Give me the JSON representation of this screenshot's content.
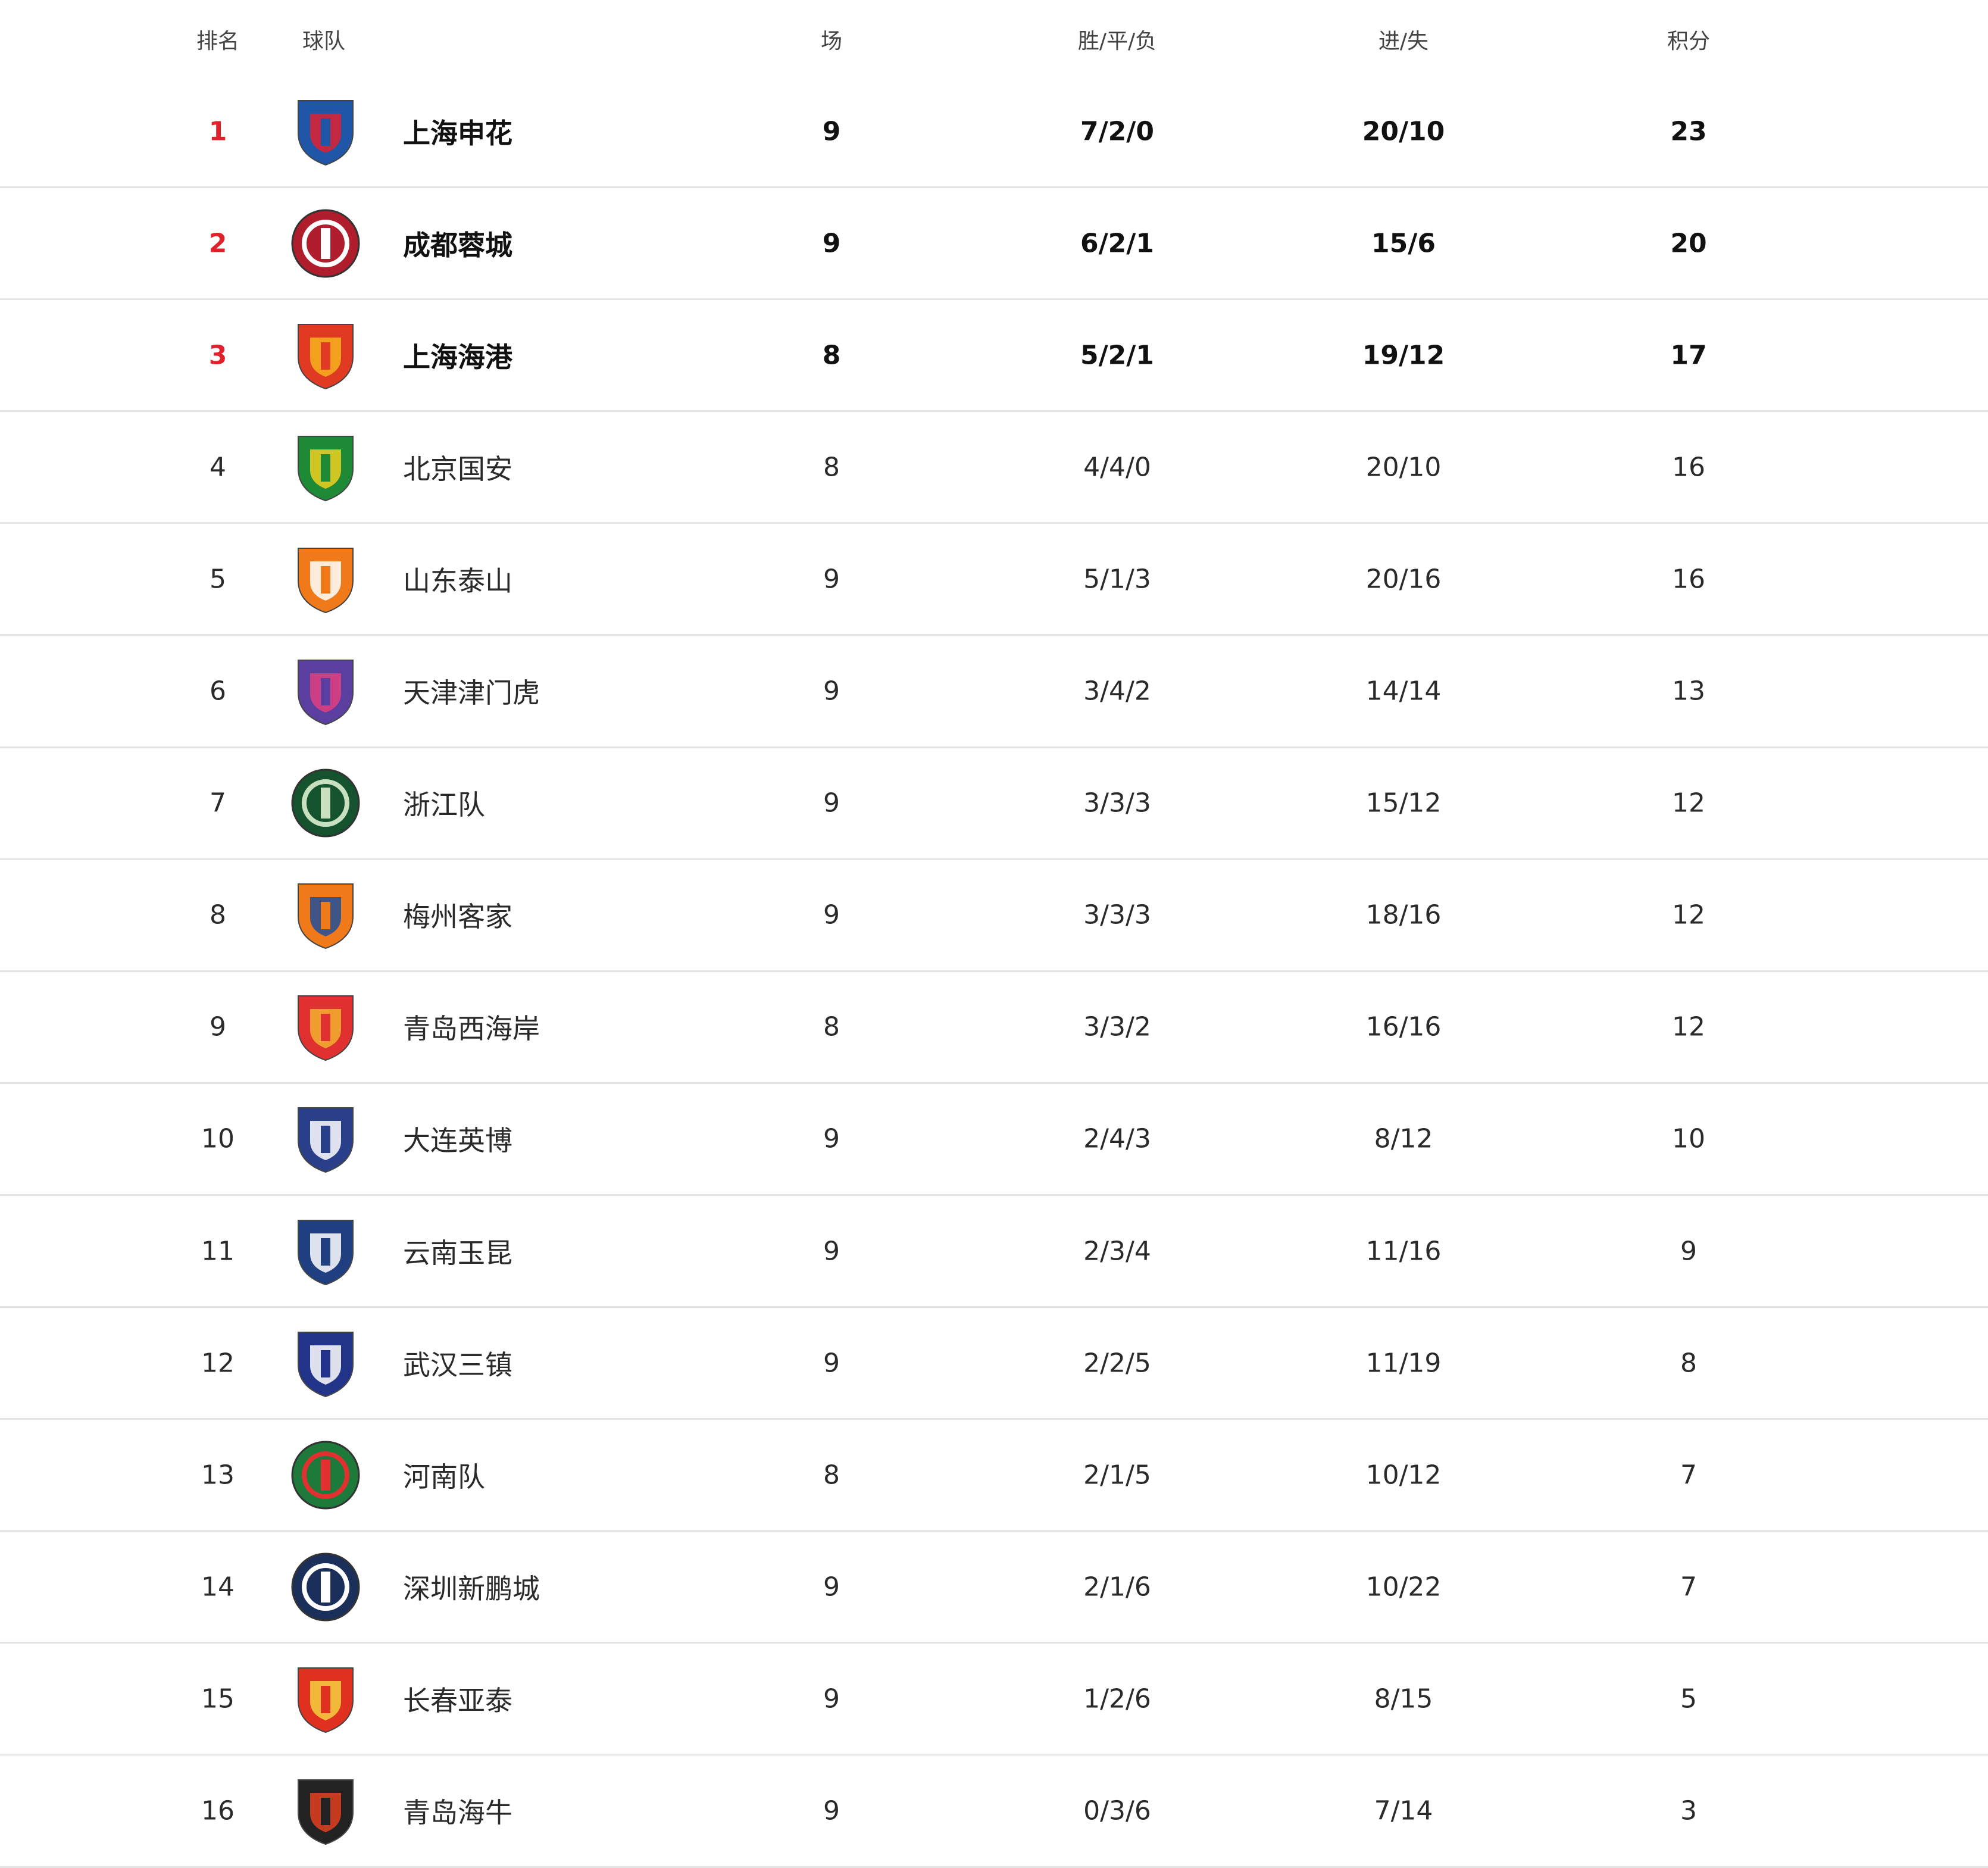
{
  "header": {
    "rank": "排名",
    "team": "球队",
    "played": "场",
    "wdl": "胜/平/负",
    "goals": "进/失",
    "points": "积分"
  },
  "colors": {
    "top_rank": "#e0202a",
    "divider": "#e4e4e4"
  },
  "rows": [
    {
      "rank": "1",
      "team": "上海申花",
      "played": "9",
      "wdl": "7/2/0",
      "goals": "20/10",
      "points": "23",
      "logo": "shenhua-crest-icon",
      "c1": "#1f56a8",
      "c2": "#e02030",
      "shape": "shield"
    },
    {
      "rank": "2",
      "team": "成都蓉城",
      "played": "9",
      "wdl": "6/2/1",
      "goals": "15/6",
      "points": "20",
      "logo": "chengdu-crest-icon",
      "c1": "#b01e2e",
      "c2": "#ffffff",
      "shape": "circle"
    },
    {
      "rank": "3",
      "team": "上海海港",
      "played": "8",
      "wdl": "5/2/1",
      "goals": "19/12",
      "points": "17",
      "logo": "haigang-crest-icon",
      "c1": "#e03a22",
      "c2": "#f4b31c",
      "shape": "shield"
    },
    {
      "rank": "4",
      "team": "北京国安",
      "played": "8",
      "wdl": "4/4/0",
      "goals": "20/10",
      "points": "16",
      "logo": "guoan-crest-icon",
      "c1": "#1e8a36",
      "c2": "#f0d020",
      "shape": "shield"
    },
    {
      "rank": "5",
      "team": "山东泰山",
      "played": "9",
      "wdl": "5/1/3",
      "goals": "20/16",
      "points": "16",
      "logo": "taishan-crest-icon",
      "c1": "#f07a1a",
      "c2": "#ffffff",
      "shape": "shield"
    },
    {
      "rank": "6",
      "team": "天津津门虎",
      "played": "9",
      "wdl": "3/4/2",
      "goals": "14/14",
      "points": "13",
      "logo": "tianjin-crest-icon",
      "c1": "#5a3fa0",
      "c2": "#e04080",
      "shape": "shield"
    },
    {
      "rank": "7",
      "team": "浙江队",
      "played": "9",
      "wdl": "3/3/3",
      "goals": "15/12",
      "points": "12",
      "logo": "zhejiang-crest-icon",
      "c1": "#14532d",
      "c2": "#c9e0c0",
      "shape": "circle"
    },
    {
      "rank": "8",
      "team": "梅州客家",
      "played": "9",
      "wdl": "3/3/3",
      "goals": "18/16",
      "points": "12",
      "logo": "meizhou-crest-icon",
      "c1": "#f07a1a",
      "c2": "#1f4f9a",
      "shape": "shield"
    },
    {
      "rank": "9",
      "team": "青岛西海岸",
      "played": "8",
      "wdl": "3/3/2",
      "goals": "16/16",
      "points": "12",
      "logo": "xihaian-crest-icon",
      "c1": "#e03030",
      "c2": "#f2b030",
      "shape": "shield"
    },
    {
      "rank": "10",
      "team": "大连英博",
      "played": "9",
      "wdl": "2/4/3",
      "goals": "8/12",
      "points": "10",
      "logo": "dalian-crest-icon",
      "c1": "#2a3f8a",
      "c2": "#ffffff",
      "shape": "shield"
    },
    {
      "rank": "11",
      "team": "云南玉昆",
      "played": "9",
      "wdl": "2/3/4",
      "goals": "11/16",
      "points": "9",
      "logo": "yunnan-crest-icon",
      "c1": "#1f3f80",
      "c2": "#ffffff",
      "shape": "shield"
    },
    {
      "rank": "12",
      "team": "武汉三镇",
      "played": "9",
      "wdl": "2/2/5",
      "goals": "11/19",
      "points": "8",
      "logo": "wuhan-crest-icon",
      "c1": "#22348a",
      "c2": "#ffffff",
      "shape": "shield"
    },
    {
      "rank": "13",
      "team": "河南队",
      "played": "8",
      "wdl": "2/1/5",
      "goals": "10/12",
      "points": "7",
      "logo": "henan-crest-icon",
      "c1": "#1e7a3a",
      "c2": "#e03030",
      "shape": "circle"
    },
    {
      "rank": "14",
      "team": "深圳新鹏城",
      "played": "9",
      "wdl": "2/1/6",
      "goals": "10/22",
      "points": "7",
      "logo": "shenzhen-crest-icon",
      "c1": "#1a2f5a",
      "c2": "#ffffff",
      "shape": "circle"
    },
    {
      "rank": "15",
      "team": "长春亚泰",
      "played": "9",
      "wdl": "1/2/6",
      "goals": "8/15",
      "points": "5",
      "logo": "changchun-crest-icon",
      "c1": "#e03020",
      "c2": "#f5d040",
      "shape": "shield"
    },
    {
      "rank": "16",
      "team": "青岛海牛",
      "played": "9",
      "wdl": "0/3/6",
      "goals": "7/14",
      "points": "3",
      "logo": "hainiu-crest-icon",
      "c1": "#222222",
      "c2": "#e04020",
      "shape": "shield"
    }
  ]
}
